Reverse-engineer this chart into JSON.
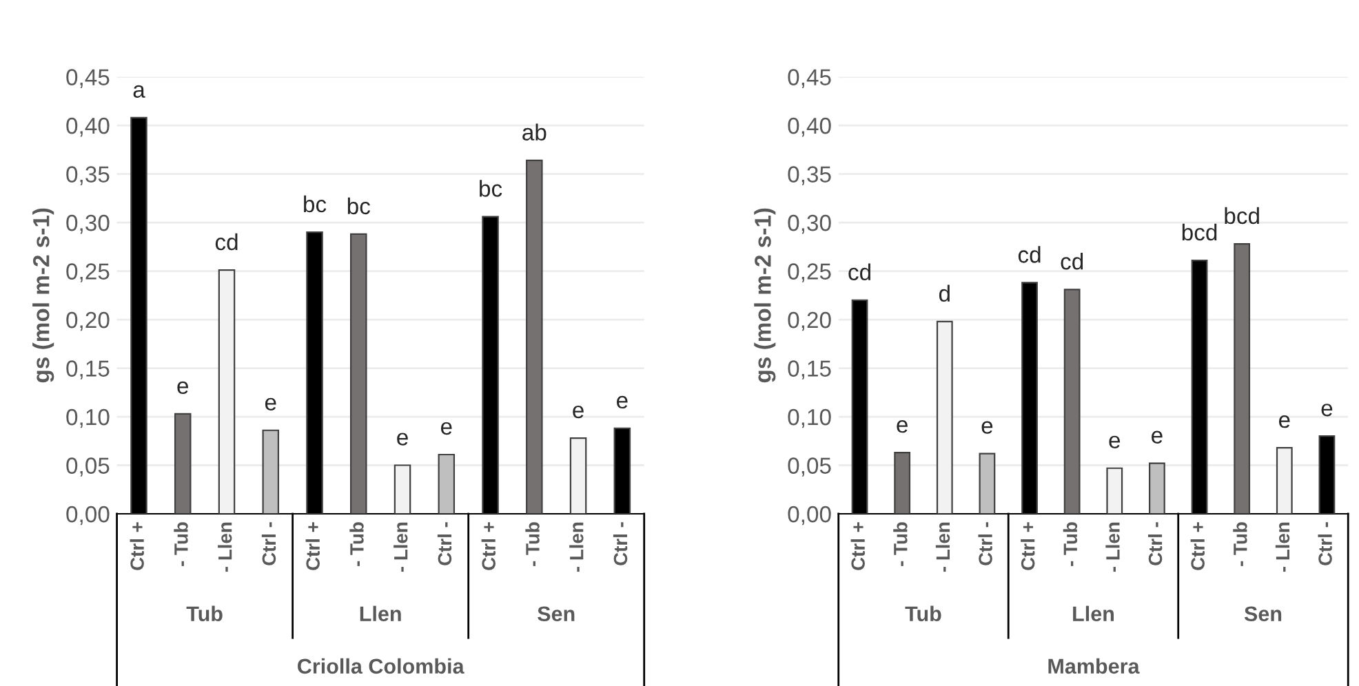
{
  "chart_data": [
    {
      "type": "bar",
      "xlabel": "Criolla Colombia",
      "ylabel": "gs (mol m-2 s-1)",
      "categories": [
        "Ctrl +",
        "- Tub",
        "- Llen",
        "Ctrl -",
        "Ctrl +",
        "- Tub",
        "- Llen",
        "Ctrl -",
        "Ctrl +",
        "- Tub",
        "- Llen",
        "Ctrl -"
      ],
      "values": [
        0.408,
        0.103,
        0.251,
        0.086,
        0.29,
        0.288,
        0.05,
        0.061,
        0.306,
        0.364,
        0.078,
        0.088
      ],
      "colors": [
        "#000000",
        "#767171",
        "#f2f2f2",
        "#bfbfbf",
        "#000000",
        "#767171",
        "#f2f2f2",
        "#bfbfbf",
        "#000000",
        "#767171",
        "#f2f2f2",
        "#000000"
      ],
      "value_labels": [
        "a",
        "e",
        "cd",
        "e",
        "bc",
        "bc",
        "e",
        "e",
        "bc",
        "ab",
        "e",
        "e"
      ],
      "annotations": [
        "Tub",
        "Llen",
        "Sen"
      ],
      "ylim": [
        0,
        0.45
      ],
      "yticks": [
        {
          "value": 0,
          "label": "0,00"
        },
        {
          "value": 0.05,
          "label": "0,05"
        },
        {
          "value": 0.1,
          "label": "0,10"
        },
        {
          "value": 0.15,
          "label": "0,15"
        },
        {
          "value": 0.2,
          "label": "0,20"
        },
        {
          "value": 0.25,
          "label": "0,25"
        },
        {
          "value": 0.3,
          "label": "0,30"
        },
        {
          "value": 0.35,
          "label": "0,35"
        },
        {
          "value": 0.4,
          "label": "0,40"
        },
        {
          "value": 0.45,
          "label": "0,45"
        }
      ],
      "grid": "y"
    },
    {
      "type": "bar",
      "xlabel": "Mambera",
      "ylabel": "gs (mol m-2 s-1)",
      "categories": [
        "Ctrl +",
        "- Tub",
        "- Llen",
        "Ctrl -",
        "Ctrl +",
        "- Tub",
        "- Llen",
        "Ctrl -",
        "Ctrl +",
        "- Tub",
        "- Llen",
        "Ctrl -"
      ],
      "values": [
        0.22,
        0.063,
        0.198,
        0.062,
        0.238,
        0.231,
        0.047,
        0.052,
        0.261,
        0.278,
        0.068,
        0.08
      ],
      "colors": [
        "#000000",
        "#767171",
        "#f2f2f2",
        "#bfbfbf",
        "#000000",
        "#767171",
        "#f2f2f2",
        "#bfbfbf",
        "#000000",
        "#767171",
        "#f2f2f2",
        "#000000"
      ],
      "value_labels": [
        "cd",
        "e",
        "d",
        "e",
        "cd",
        "cd",
        "e",
        "e",
        "bcd",
        "bcd",
        "e",
        "e"
      ],
      "annotations": [
        "Tub",
        "Llen",
        "Sen"
      ],
      "ylim": [
        0,
        0.45
      ],
      "yticks": [
        {
          "value": 0,
          "label": "0,00"
        },
        {
          "value": 0.05,
          "label": "0,05"
        },
        {
          "value": 0.1,
          "label": "0,10"
        },
        {
          "value": 0.15,
          "label": "0,15"
        },
        {
          "value": 0.2,
          "label": "0,20"
        },
        {
          "value": 0.25,
          "label": "0,25"
        },
        {
          "value": 0.3,
          "label": "0,30"
        },
        {
          "value": 0.35,
          "label": "0,35"
        },
        {
          "value": 0.4,
          "label": "0,40"
        },
        {
          "value": 0.45,
          "label": "0,45"
        }
      ],
      "grid": "y"
    }
  ]
}
